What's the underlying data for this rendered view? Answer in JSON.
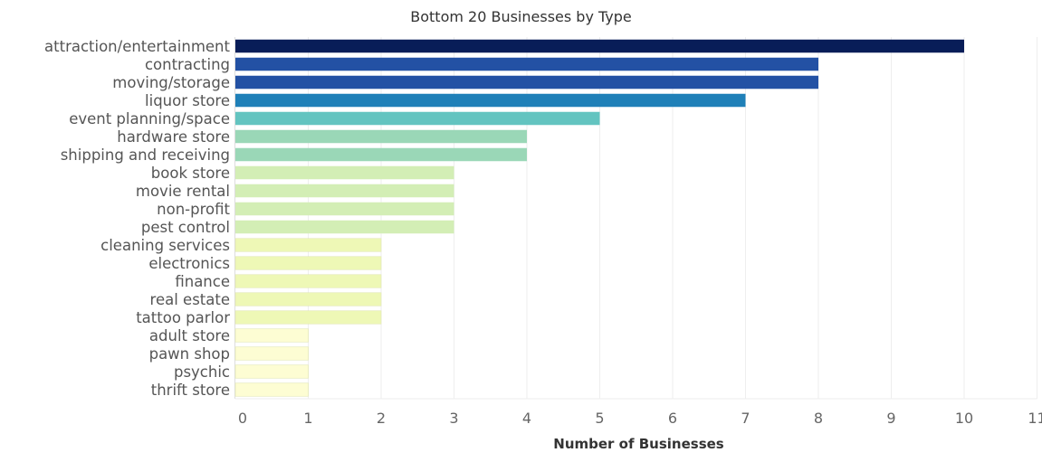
{
  "chart_data": {
    "type": "bar",
    "orientation": "horizontal",
    "title": "Bottom 20 Businesses by Type",
    "xlabel": "Number of Businesses",
    "ylabel": "",
    "xlim": [
      0,
      11
    ],
    "xticks": [
      0,
      1,
      2,
      3,
      4,
      5,
      6,
      7,
      8,
      9,
      10,
      11
    ],
    "grid": true,
    "categories": [
      "attraction/entertainment",
      "contracting",
      "moving/storage",
      "liquor store",
      "event planning/space",
      "hardware store",
      "shipping and receiving",
      "book store",
      "movie rental",
      "non-profit",
      "pest control",
      "cleaning services",
      "electronics",
      "finance",
      "real estate",
      "tattoo parlor",
      "adult store",
      "pawn shop",
      "psychic",
      "thrift store"
    ],
    "values": [
      10,
      8,
      8,
      7,
      5,
      4,
      4,
      3,
      3,
      3,
      3,
      2,
      2,
      2,
      2,
      2,
      1,
      1,
      1,
      1
    ],
    "colors": {
      "10": "#081d58",
      "8": "#2351a4",
      "7": "#1f80b8",
      "5": "#63c4c0",
      "4": "#9ad7b7",
      "3": "#d3eeb5",
      "2": "#eef8b6",
      "1": "#fdfdd3"
    }
  }
}
